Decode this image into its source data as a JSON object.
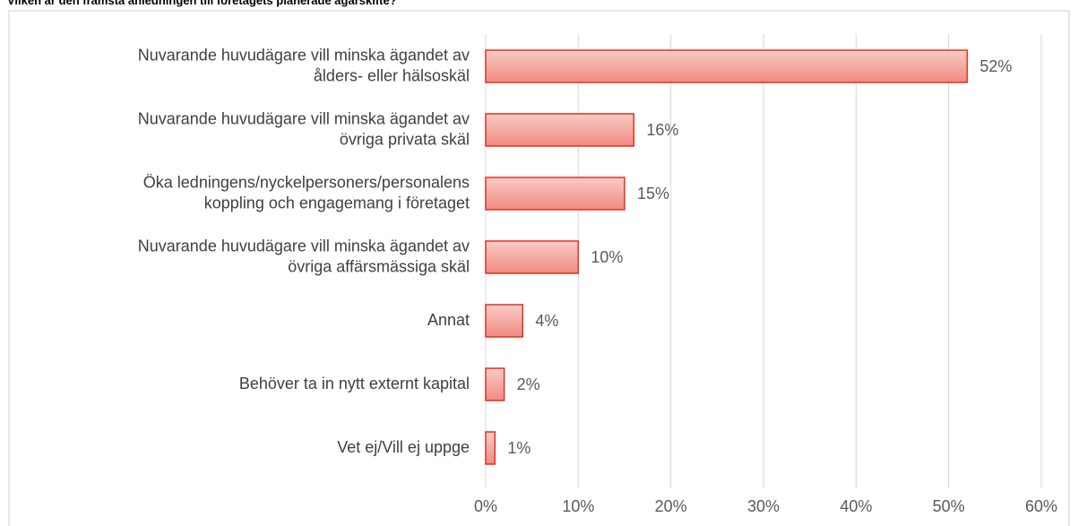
{
  "chart_data": {
    "type": "bar",
    "orientation": "horizontal",
    "title": "Vilken är den främsta anledningen till företagets planerade ägarskifte?",
    "categories": [
      [
        "Nuvarande huvudägare vill minska ägandet av",
        "ålders- eller hälsoskäl"
      ],
      [
        "Nuvarande huvudägare vill minska ägandet av",
        "övriga privata skäl"
      ],
      [
        "Öka ledningens/nyckelpersoners/personalens",
        "koppling och engagemang i företaget"
      ],
      [
        "Nuvarande huvudägare vill minska ägandet av",
        "övriga affärsmässiga skäl"
      ],
      [
        "Annat"
      ],
      [
        "Behöver ta in nytt externt kapital"
      ],
      [
        "Vet ej/Vill ej uppge"
      ]
    ],
    "values": [
      52,
      16,
      15,
      10,
      4,
      2,
      1
    ],
    "value_labels": [
      "52%",
      "16%",
      "15%",
      "10%",
      "4%",
      "2%",
      "1%"
    ],
    "color": "#f4a09a",
    "edge_color": "#e0321e",
    "xlim": [
      0,
      60
    ],
    "xticks": [
      {
        "value": 0,
        "label": "0%"
      },
      {
        "value": 10,
        "label": "10%"
      },
      {
        "value": 20,
        "label": "20%"
      },
      {
        "value": 30,
        "label": "30%"
      },
      {
        "value": 40,
        "label": "40%"
      },
      {
        "value": 50,
        "label": "50%"
      },
      {
        "value": 60,
        "label": "60%"
      }
    ],
    "grid": true
  }
}
